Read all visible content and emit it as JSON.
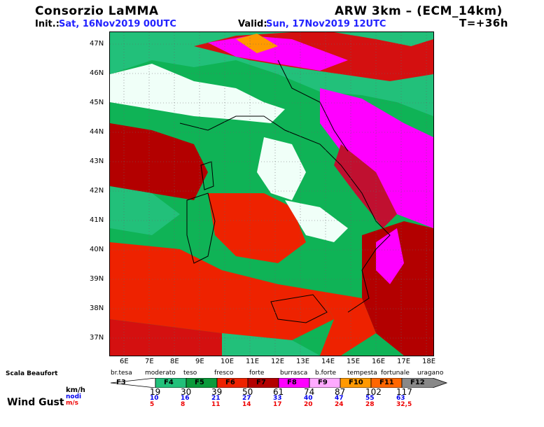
{
  "header": {
    "title_left": "Consorzio LaMMA",
    "title_right": "ARW 3km – (ECM_14km)",
    "init_label": "Init.:",
    "init_value": "Sat, 16Nov2019 00UTC",
    "valid_label": "Valid:",
    "valid_value": "Sun, 17Nov2019 12UTC",
    "forecast_step": "T=+36h"
  },
  "map": {
    "lat_ticks": [
      "47N",
      "46N",
      "45N",
      "44N",
      "43N",
      "42N",
      "41N",
      "40N",
      "39N",
      "38N",
      "37N"
    ],
    "lon_ticks": [
      "6E",
      "7E",
      "8E",
      "9E",
      "10E",
      "11E",
      "12E",
      "13E",
      "14E",
      "15E",
      "16E",
      "17E",
      "18E"
    ],
    "lat_range": [
      36.5,
      47.4
    ],
    "lon_range": [
      5.5,
      18.5
    ]
  },
  "legend": {
    "scale_title": "Scala Beaufort",
    "variable": "Wind Gust",
    "unit_kmh": "km/h",
    "unit_nodi": "nodi",
    "unit_ms": "m/s",
    "descriptions": [
      "br.tesa",
      "moderato",
      "teso",
      "fresco",
      "forte",
      "burrasca",
      "b.forte",
      "tempesta",
      "fortunale",
      "uragano"
    ],
    "classes": [
      {
        "label": "F3",
        "color": "#ffffff"
      },
      {
        "label": "F4",
        "color": "#22c07a"
      },
      {
        "label": "F5",
        "color": "#0a9a3a"
      },
      {
        "label": "F6",
        "color": "#ee2200"
      },
      {
        "label": "F7",
        "color": "#b30000"
      },
      {
        "label": "F8",
        "color": "#ff00ff"
      },
      {
        "label": "F9",
        "color": "#ffaaff"
      },
      {
        "label": "F10",
        "color": "#ff9900"
      },
      {
        "label": "F11",
        "color": "#ff6600"
      },
      {
        "label": "F12",
        "color": "#888888"
      }
    ],
    "kmh": [
      "19",
      "30",
      "39",
      "50",
      "61",
      "74",
      "87",
      "102",
      "117"
    ],
    "nodi": [
      "10",
      "16",
      "21",
      "27",
      "33",
      "40",
      "47",
      "55",
      "63"
    ],
    "ms": [
      "5",
      "8",
      "11",
      "14",
      "17",
      "20",
      "24",
      "28",
      "32,5"
    ]
  }
}
